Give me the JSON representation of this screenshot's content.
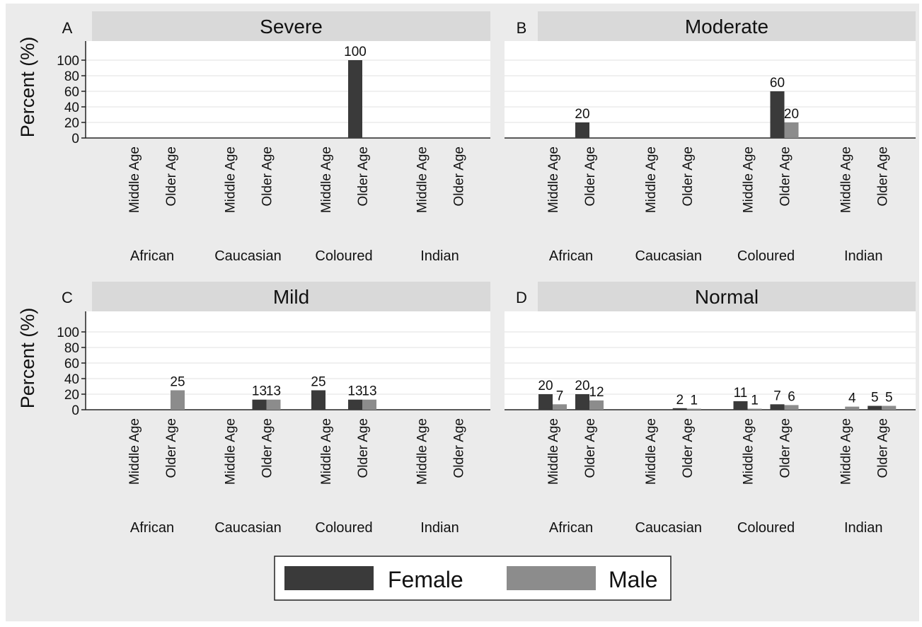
{
  "colors": {
    "figure_bg": "#ebebeb",
    "panel_header": "#d9d9d9",
    "plot_bg": "#ffffff",
    "grid": "#ebebeb",
    "female": "#3a3a3a",
    "male": "#8c8c8c",
    "text": "#111111"
  },
  "chart_data": [
    {
      "panel_letter": "A",
      "title": "Severe",
      "type": "bar",
      "ylabel": "Percent (%)",
      "yticks": [
        0,
        20,
        40,
        60,
        80,
        100
      ],
      "ylim": [
        0,
        125
      ],
      "grid": true,
      "groups": [
        "African",
        "Caucasian",
        "Coloured",
        "Indian"
      ],
      "categories": [
        "Middle Age",
        "Older Age"
      ],
      "series_names": [
        "Female",
        "Male"
      ],
      "bars": [
        {
          "group": "Coloured",
          "category": "Older Age",
          "series": "Female",
          "value": 100,
          "label": "100"
        }
      ]
    },
    {
      "panel_letter": "B",
      "title": "Moderate",
      "type": "bar",
      "ylabel": "",
      "yticks": [],
      "ylim": [
        0,
        125
      ],
      "grid": true,
      "groups": [
        "African",
        "Caucasian",
        "Coloured",
        "Indian"
      ],
      "categories": [
        "Middle Age",
        "Older Age"
      ],
      "series_names": [
        "Female",
        "Male"
      ],
      "bars": [
        {
          "group": "African",
          "category": "Older Age",
          "series": "Female",
          "value": 20,
          "label": "20"
        },
        {
          "group": "Coloured",
          "category": "Older Age",
          "series": "Female",
          "value": 60,
          "label": "60"
        },
        {
          "group": "Coloured",
          "category": "Older Age",
          "series": "Male",
          "value": 20,
          "label": "20"
        }
      ]
    },
    {
      "panel_letter": "C",
      "title": "Mild",
      "type": "bar",
      "ylabel": "Percent (%)",
      "yticks": [
        0,
        20,
        40,
        60,
        80,
        100
      ],
      "ylim": [
        0,
        125
      ],
      "grid": true,
      "groups": [
        "African",
        "Caucasian",
        "Coloured",
        "Indian"
      ],
      "categories": [
        "Middle Age",
        "Older Age"
      ],
      "series_names": [
        "Female",
        "Male"
      ],
      "bars": [
        {
          "group": "African",
          "category": "Older Age",
          "series": "Male",
          "value": 25,
          "label": "25"
        },
        {
          "group": "Caucasian",
          "category": "Older Age",
          "series": "Female",
          "value": 13,
          "label": "13"
        },
        {
          "group": "Caucasian",
          "category": "Older Age",
          "series": "Male",
          "value": 13,
          "label": "13"
        },
        {
          "group": "Coloured",
          "category": "Middle Age",
          "series": "Female",
          "value": 25,
          "label": "25"
        },
        {
          "group": "Coloured",
          "category": "Older Age",
          "series": "Female",
          "value": 13,
          "label": "13"
        },
        {
          "group": "Coloured",
          "category": "Older Age",
          "series": "Male",
          "value": 13,
          "label": "13"
        }
      ]
    },
    {
      "panel_letter": "D",
      "title": "Normal",
      "type": "bar",
      "ylabel": "",
      "yticks": [],
      "ylim": [
        0,
        125
      ],
      "grid": true,
      "groups": [
        "African",
        "Caucasian",
        "Coloured",
        "Indian"
      ],
      "categories": [
        "Middle Age",
        "Older Age"
      ],
      "series_names": [
        "Female",
        "Male"
      ],
      "bars": [
        {
          "group": "African",
          "category": "Middle Age",
          "series": "Female",
          "value": 20,
          "label": "20"
        },
        {
          "group": "African",
          "category": "Middle Age",
          "series": "Male",
          "value": 7,
          "label": "7"
        },
        {
          "group": "African",
          "category": "Older Age",
          "series": "Female",
          "value": 20,
          "label": "20"
        },
        {
          "group": "African",
          "category": "Older Age",
          "series": "Male",
          "value": 12,
          "label": "12"
        },
        {
          "group": "Caucasian",
          "category": "Older Age",
          "series": "Female",
          "value": 2,
          "label": "2"
        },
        {
          "group": "Caucasian",
          "category": "Older Age",
          "series": "Male",
          "value": 1,
          "label": "1"
        },
        {
          "group": "Coloured",
          "category": "Middle Age",
          "series": "Female",
          "value": 11,
          "label": "11"
        },
        {
          "group": "Coloured",
          "category": "Middle Age",
          "series": "Male",
          "value": 1,
          "label": "1"
        },
        {
          "group": "Coloured",
          "category": "Older Age",
          "series": "Female",
          "value": 7,
          "label": "7"
        },
        {
          "group": "Coloured",
          "category": "Older Age",
          "series": "Male",
          "value": 6,
          "label": "6"
        },
        {
          "group": "Indian",
          "category": "Middle Age",
          "series": "Male",
          "value": 4,
          "label": "4"
        },
        {
          "group": "Indian",
          "category": "Older Age",
          "series": "Female",
          "value": 5,
          "label": "5"
        },
        {
          "group": "Indian",
          "category": "Older Age",
          "series": "Male",
          "value": 5,
          "label": "5"
        }
      ]
    }
  ],
  "legend": {
    "placement": "bottom-center",
    "entries": [
      {
        "name": "Female",
        "color_key": "female"
      },
      {
        "name": "Male",
        "color_key": "male"
      }
    ]
  }
}
